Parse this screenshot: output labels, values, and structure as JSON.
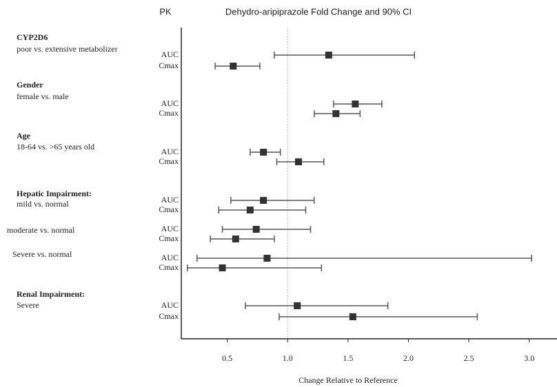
{
  "chart_data": {
    "type": "forest",
    "panel_label": "PK",
    "title": "Dehydro-aripiprazole Fold Change and 90% CI",
    "x_label": "Change Relative to Reference",
    "xlim": [
      0.12,
      3.23
    ],
    "xticks": [
      0.5,
      {
        "value": 1,
        "label": "1.0"
      },
      1.5,
      {
        "value": 2,
        "label": "2.0"
      },
      2.5,
      {
        "value": 3,
        "label": "3.0"
      }
    ],
    "reference_line": 1,
    "color": "#333333",
    "groups": [
      {
        "name": "CYP2D6",
        "subgroups": [
          {
            "name": "poor vs. extensive metabolizer",
            "rows": [
              {
                "label": "AUC",
                "value": 1.34,
                "lower": 0.89,
                "upper": 2.05
              },
              {
                "label": "Cmax",
                "value": 0.55,
                "lower": 0.4,
                "upper": 0.77
              }
            ]
          }
        ]
      },
      {
        "name": "Gender",
        "subgroups": [
          {
            "name": "female vs. male",
            "rows": [
              {
                "label": "AUC",
                "value": 1.56,
                "lower": 1.38,
                "upper": 1.78
              },
              {
                "label": "Cmax",
                "value": 1.4,
                "lower": 1.22,
                "upper": 1.6
              }
            ]
          }
        ]
      },
      {
        "name": "Age",
        "subgroups": [
          {
            "name": "18-64 vs. >65 years old",
            "rows": [
              {
                "label": "AUC",
                "value": 0.8,
                "lower": 0.69,
                "upper": 0.94
              },
              {
                "label": "Cmax",
                "value": 1.09,
                "lower": 0.91,
                "upper": 1.3
              }
            ]
          }
        ]
      },
      {
        "name": "Hepatic Impairment:",
        "subgroups": [
          {
            "name": "mild vs. normal",
            "rows": [
              {
                "label": "AUC",
                "value": 0.8,
                "lower": 0.53,
                "upper": 1.22
              },
              {
                "label": "Cmax",
                "value": 0.69,
                "lower": 0.43,
                "upper": 1.15
              }
            ]
          },
          {
            "name": "moderate vs. normal",
            "rows": [
              {
                "label": "AUC",
                "value": 0.74,
                "lower": 0.46,
                "upper": 1.19
              },
              {
                "label": "Cmax",
                "value": 0.57,
                "lower": 0.36,
                "upper": 0.89
              }
            ]
          },
          {
            "name": "Severe vs. normal",
            "rows": [
              {
                "label": "AUC",
                "value": 0.83,
                "lower": 0.25,
                "upper": 3.02
              },
              {
                "label": "Cmax",
                "value": 0.46,
                "lower": 0.17,
                "upper": 1.28
              }
            ]
          }
        ]
      },
      {
        "name": "Renal Impairment:",
        "subgroups": [
          {
            "name": "Severe",
            "rows": [
              {
                "label": "AUC",
                "value": 1.08,
                "lower": 0.65,
                "upper": 1.83
              },
              {
                "label": "Cmax",
                "value": 1.54,
                "lower": 0.93,
                "upper": 2.57
              }
            ]
          }
        ]
      }
    ]
  }
}
